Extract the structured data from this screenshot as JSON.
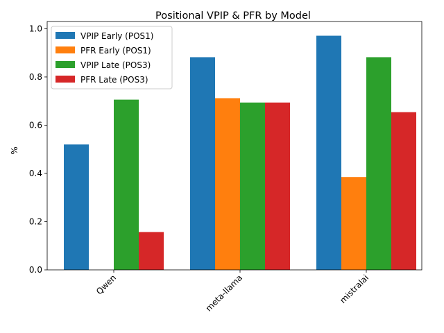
{
  "chart_data": {
    "type": "bar",
    "title": "Positional VPIP & PFR by Model",
    "xlabel": "",
    "ylabel": "%",
    "ylim": [
      0,
      1.0
    ],
    "yticks": [
      "0.0",
      "0.2",
      "0.4",
      "0.6",
      "0.8",
      "1.0"
    ],
    "categories": [
      "Qwen",
      "meta-llama",
      "mistralai"
    ],
    "grid": false,
    "legend_position": "top-left",
    "series": [
      {
        "name": "VPIP Early (POS1)",
        "color": "#1f77b4",
        "values": [
          0.52,
          0.882,
          0.971
        ]
      },
      {
        "name": "PFR Early (POS1)",
        "color": "#ff7f0e",
        "values": [
          0.0,
          0.712,
          0.385
        ]
      },
      {
        "name": "VPIP Late (POS3)",
        "color": "#2ca02c",
        "values": [
          0.706,
          0.694,
          0.882
        ]
      },
      {
        "name": "PFR Late (POS3)",
        "color": "#d62728",
        "values": [
          0.157,
          0.694,
          0.654
        ]
      }
    ]
  }
}
